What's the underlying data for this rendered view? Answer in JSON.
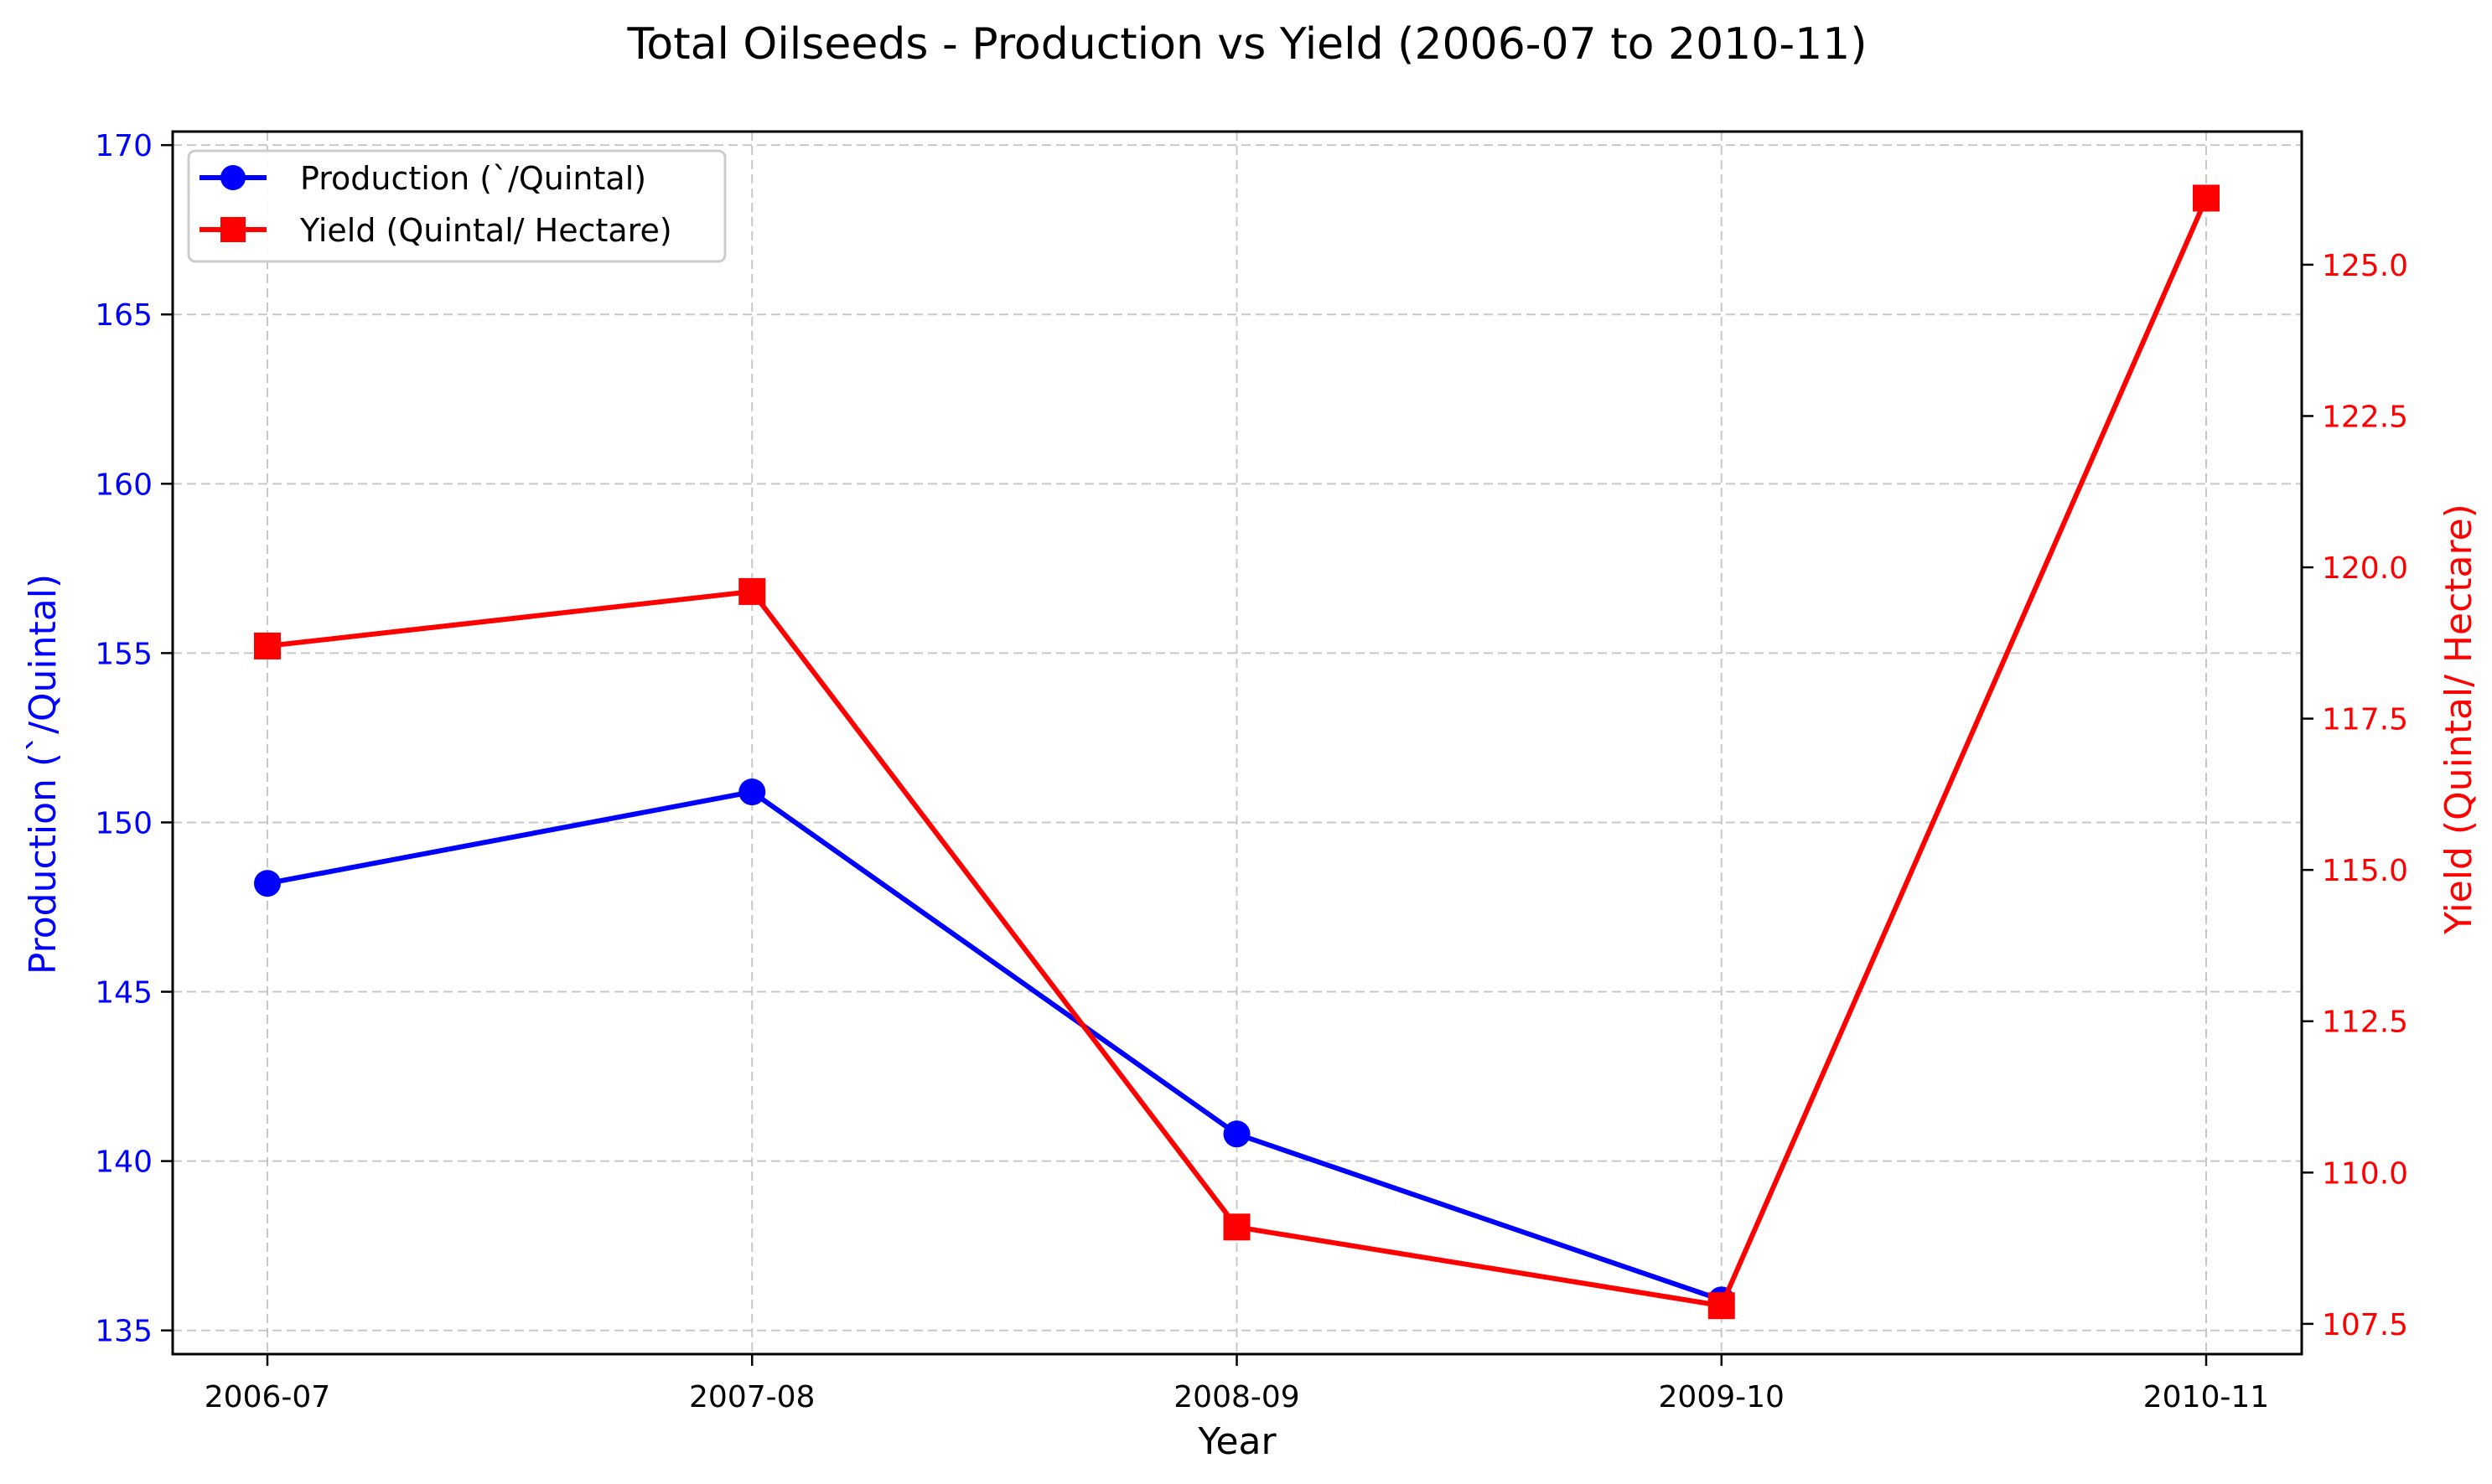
{
  "chart_data": {
    "type": "line",
    "title": "Total Oilseeds - Production vs Yield (2006-07 to 2010-11)",
    "xlabel": "Year",
    "categories": [
      "2006-07",
      "2007-08",
      "2008-09",
      "2009-10",
      "2010-11"
    ],
    "grid": true,
    "legend_position": "top-left",
    "series": [
      {
        "name": "Production (`/Quintal)",
        "axis": "left",
        "color": "#0000ff",
        "marker": "circle",
        "values": [
          148.2,
          150.9,
          140.8,
          135.9,
          null
        ]
      },
      {
        "name": "Yield (Quintal/ Hectare)",
        "axis": "right",
        "color": "#ff0000",
        "marker": "square",
        "values": [
          118.7,
          119.6,
          109.1,
          107.8,
          126.1
        ]
      }
    ],
    "y_left": {
      "label": "Production (`/Quintal)",
      "color": "#0000ff",
      "range": [
        134.3,
        170.4
      ],
      "ticks": [
        "135",
        "140",
        "145",
        "150",
        "155",
        "160",
        "165",
        "170"
      ]
    },
    "y_right": {
      "label": "Yield (Quintal/ Hectare)",
      "color": "#ff0000",
      "range": [
        107.0,
        127.2
      ],
      "ticks": [
        "107.5",
        "110.0",
        "112.5",
        "115.0",
        "117.5",
        "120.0",
        "122.5",
        "125.0"
      ]
    }
  }
}
